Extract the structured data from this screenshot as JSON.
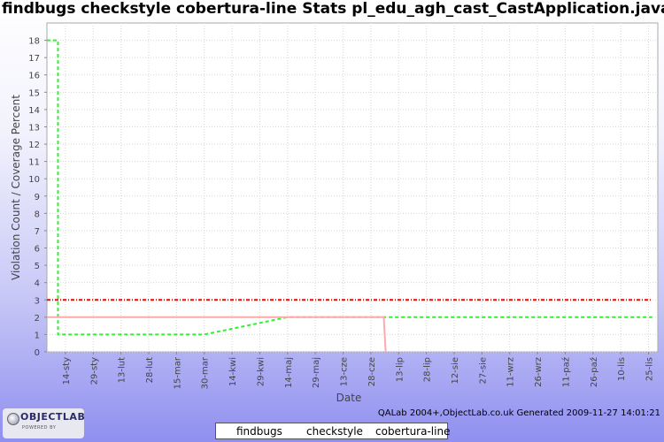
{
  "chart_data": {
    "type": "line",
    "title": "findbugs checkstyle cobertura-line  Stats pl_edu_agh_cast_CastApplication.java",
    "xlabel": "Date",
    "ylabel": "Violation Count / Coverage Percent",
    "ylim": [
      0,
      19
    ],
    "yticks": [
      0,
      1,
      2,
      3,
      4,
      5,
      6,
      7,
      8,
      9,
      10,
      11,
      12,
      13,
      14,
      15,
      16,
      17,
      18
    ],
    "xlim": [
      "2009-01-04",
      "2009-11-30"
    ],
    "grid": true,
    "legend_position": "bottom",
    "xtick_labels": [
      {
        "date": "2009-01-14",
        "label": "14-sty"
      },
      {
        "date": "2009-01-29",
        "label": "29-sty"
      },
      {
        "date": "2009-02-13",
        "label": "13-lut"
      },
      {
        "date": "2009-02-28",
        "label": "28-lut"
      },
      {
        "date": "2009-03-15",
        "label": "15-mar"
      },
      {
        "date": "2009-03-30",
        "label": "30-mar"
      },
      {
        "date": "2009-04-14",
        "label": "14-kwi"
      },
      {
        "date": "2009-04-29",
        "label": "29-kwi"
      },
      {
        "date": "2009-05-14",
        "label": "14-maj"
      },
      {
        "date": "2009-05-29",
        "label": "29-maj"
      },
      {
        "date": "2009-06-13",
        "label": "13-cze"
      },
      {
        "date": "2009-06-28",
        "label": "28-cze"
      },
      {
        "date": "2009-07-13",
        "label": "13-lip"
      },
      {
        "date": "2009-07-28",
        "label": "28-lip"
      },
      {
        "date": "2009-08-12",
        "label": "12-sie"
      },
      {
        "date": "2009-08-27",
        "label": "27-sie"
      },
      {
        "date": "2009-09-11",
        "label": "11-wrz"
      },
      {
        "date": "2009-09-26",
        "label": "26-wrz"
      },
      {
        "date": "2009-10-11",
        "label": "11-paź"
      },
      {
        "date": "2009-10-26",
        "label": "26-paź"
      },
      {
        "date": "2009-11-10",
        "label": "10-lis"
      },
      {
        "date": "2009-11-25",
        "label": "25-lis"
      }
    ],
    "series": [
      {
        "name": "findbugs",
        "color": "#ff0000",
        "dash": "4,2,1,2",
        "points": [
          {
            "x": "2009-01-04",
            "y": 3
          },
          {
            "x": "2009-11-27",
            "y": 3
          }
        ]
      },
      {
        "name": "checkstyle",
        "color": "#33ee33",
        "dash": "4,3",
        "points": [
          {
            "x": "2009-01-04",
            "y": 18
          },
          {
            "x": "2009-01-10",
            "y": 18
          },
          {
            "x": "2009-01-10",
            "y": 1
          },
          {
            "x": "2009-03-30",
            "y": 1
          },
          {
            "x": "2009-05-14",
            "y": 2
          },
          {
            "x": "2009-11-27",
            "y": 2
          }
        ]
      },
      {
        "name": "cobertura-line",
        "color": "#ffaaaa",
        "dash": "",
        "points": [
          {
            "x": "2009-01-04",
            "y": 2
          },
          {
            "x": "2009-07-05",
            "y": 2
          },
          {
            "x": "2009-07-06",
            "y": 0
          }
        ]
      }
    ]
  },
  "footer": {
    "generated": "QALab 2004+,ObjectLab.co.uk Generated 2009-11-27 14:01:21"
  },
  "logo": {
    "brand": "OBJECTLAB",
    "tagline": "POWERED BY"
  },
  "legend": {
    "items": [
      {
        "label": "findbugs"
      },
      {
        "label": "checkstyle"
      },
      {
        "label": "cobertura-line"
      }
    ]
  }
}
